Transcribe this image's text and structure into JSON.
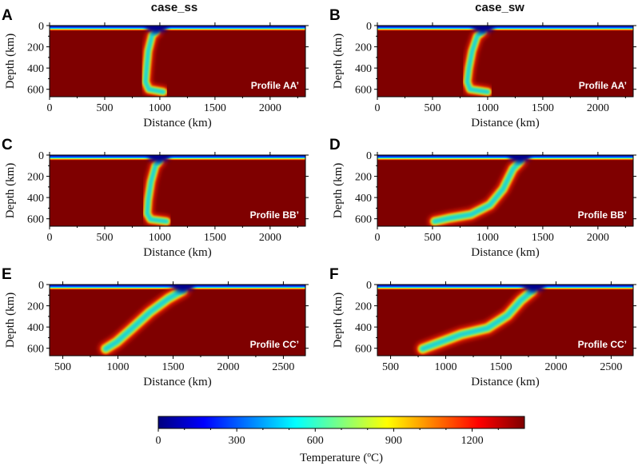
{
  "chart_data": {
    "type": "heatmap",
    "column_titles": [
      "case_ss",
      "case_sw"
    ],
    "panels": [
      {
        "label": "A",
        "case": "case_ss",
        "profile": "Profile AA’",
        "xlim": [
          0,
          2320
        ],
        "ylim": [
          0,
          670
        ],
        "xticks": [
          0,
          500,
          1000,
          1500,
          2000
        ],
        "yticks": [
          0,
          200,
          400,
          600
        ],
        "xlabel": "Distance (km)",
        "ylabel": "Depth (km)",
        "slab_path": [
          [
            970,
            55
          ],
          [
            930,
            90
          ],
          [
            895,
            240
          ],
          [
            880,
            400
          ],
          [
            870,
            530
          ],
          [
            900,
            600
          ],
          [
            1030,
            625
          ]
        ],
        "slab_width_km": 90,
        "lid_depth_km": 50,
        "trench_km": 1000
      },
      {
        "label": "B",
        "case": "case_sw",
        "profile": "Profile AA’",
        "xlim": [
          0,
          2320
        ],
        "ylim": [
          0,
          670
        ],
        "xticks": [
          0,
          500,
          1000,
          1500,
          2000
        ],
        "yticks": [
          0,
          200,
          400,
          600
        ],
        "xlabel": "Distance (km)",
        "ylabel": "Depth (km)",
        "slab_path": [
          [
            960,
            55
          ],
          [
            905,
            100
          ],
          [
            860,
            240
          ],
          [
            830,
            400
          ],
          [
            815,
            530
          ],
          [
            840,
            600
          ],
          [
            1000,
            625
          ]
        ],
        "slab_width_km": 90,
        "lid_depth_km": 50,
        "trench_km": 990
      },
      {
        "label": "C",
        "case": "case_ss",
        "profile": "Profile BB’",
        "xlim": [
          0,
          2320
        ],
        "ylim": [
          0,
          670
        ],
        "xticks": [
          0,
          500,
          1000,
          1500,
          2000
        ],
        "yticks": [
          0,
          200,
          400,
          600
        ],
        "xlabel": "Distance (km)",
        "ylabel": "Depth (km)",
        "slab_path": [
          [
            1000,
            55
          ],
          [
            960,
            100
          ],
          [
            920,
            250
          ],
          [
            895,
            420
          ],
          [
            885,
            550
          ],
          [
            915,
            605
          ],
          [
            1060,
            625
          ]
        ],
        "slab_width_km": 90,
        "lid_depth_km": 50,
        "trench_km": 1020
      },
      {
        "label": "D",
        "case": "case_sw",
        "profile": "Profile BB’",
        "xlim": [
          0,
          2320
        ],
        "ylim": [
          0,
          670
        ],
        "xticks": [
          0,
          500,
          1000,
          1500,
          2000
        ],
        "yticks": [
          0,
          200,
          400,
          600
        ],
        "xlabel": "Distance (km)",
        "ylabel": "Depth (km)",
        "slab_path": [
          [
            1300,
            55
          ],
          [
            1230,
            130
          ],
          [
            1140,
            320
          ],
          [
            1020,
            470
          ],
          [
            850,
            560
          ],
          [
            650,
            595
          ],
          [
            520,
            625
          ]
        ],
        "slab_width_km": 100,
        "lid_depth_km": 50,
        "trench_km": 1320
      },
      {
        "label": "E",
        "case": "case_ss",
        "profile": "Profile CC’",
        "xlim": [
          380,
          2700
        ],
        "ylim": [
          0,
          670
        ],
        "xticks": [
          500,
          1000,
          1500,
          2000,
          2500
        ],
        "yticks": [
          0,
          200,
          400,
          600
        ],
        "xlabel": "Distance (km)",
        "ylabel": "Depth (km)",
        "slab_path": [
          [
            1590,
            55
          ],
          [
            1460,
            130
          ],
          [
            1290,
            260
          ],
          [
            1120,
            420
          ],
          [
            990,
            540
          ],
          [
            890,
            605
          ]
        ],
        "slab_width_km": 110,
        "lid_depth_km": 50,
        "trench_km": 1620
      },
      {
        "label": "F",
        "case": "case_sw",
        "profile": "Profile CC’",
        "xlim": [
          380,
          2700
        ],
        "ylim": [
          0,
          670
        ],
        "xticks": [
          500,
          1000,
          1500,
          2000,
          2500
        ],
        "yticks": [
          0,
          200,
          400,
          600
        ],
        "xlabel": "Distance (km)",
        "ylabel": "Depth (km)",
        "slab_path": [
          [
            1790,
            55
          ],
          [
            1680,
            150
          ],
          [
            1560,
            290
          ],
          [
            1380,
            410
          ],
          [
            1140,
            470
          ],
          [
            960,
            540
          ],
          [
            790,
            605
          ]
        ],
        "slab_width_km": 110,
        "lid_depth_km": 50,
        "trench_km": 1830
      }
    ],
    "colorbar": {
      "label": "Temperature (ºC)",
      "range": [
        0,
        1400
      ],
      "ticks": [
        0,
        300,
        600,
        900,
        1200
      ],
      "colors": [
        "#00007f",
        "#0000ff",
        "#007fff",
        "#00ffff",
        "#7fff7f",
        "#ffff00",
        "#ff7f00",
        "#ff0000",
        "#7f0000"
      ]
    },
    "colors": {
      "mantle": "#7f0000",
      "cold": "#00008f"
    }
  }
}
